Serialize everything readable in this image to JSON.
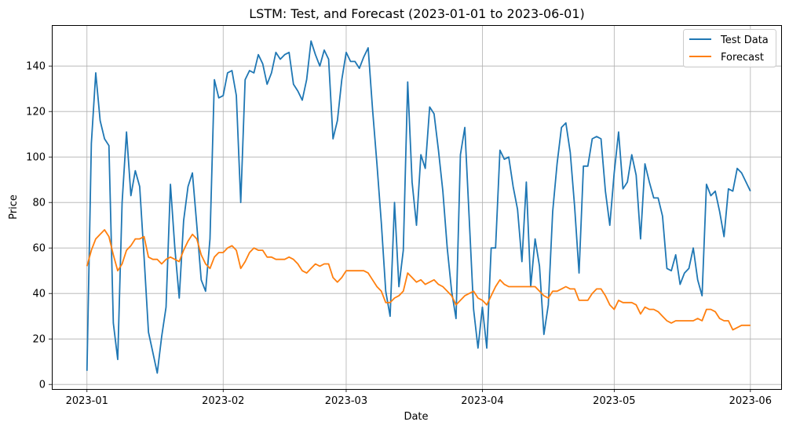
{
  "chart_data": {
    "type": "line",
    "title": "LSTM: Test, and Forecast (2023-01-01 to 2023-06-01)",
    "xlabel": "Date",
    "ylabel": "Price",
    "x_start": "2023-01-01",
    "x_end": "2023-06-01",
    "xlim": [
      "2022-12-24",
      "2023-06-08"
    ],
    "ylim": [
      -2,
      158
    ],
    "x_ticks": [
      "2023-01-01",
      "2023-02-01",
      "2023-03-01",
      "2023-04-01",
      "2023-05-01",
      "2023-06-01"
    ],
    "x_tick_labels": [
      "2023-01",
      "2023-02",
      "2023-03",
      "2023-04",
      "2023-05",
      "2023-06"
    ],
    "y_ticks": [
      0,
      20,
      40,
      60,
      80,
      100,
      120,
      140
    ],
    "grid": true,
    "legend_position": "top-right",
    "series": [
      {
        "name": "Test Data",
        "color": "#1f77b4",
        "values": [
          6,
          106,
          137,
          116,
          108,
          105,
          27,
          11,
          80,
          111,
          83,
          94,
          87,
          56,
          23,
          14,
          5,
          21,
          34,
          88,
          60,
          38,
          72,
          87,
          93,
          70,
          46,
          41,
          64,
          134,
          126,
          127,
          137,
          138,
          127,
          80,
          134,
          138,
          137,
          145,
          141,
          132,
          137,
          146,
          143,
          145,
          146,
          132,
          129,
          125,
          134,
          151,
          145,
          140,
          147,
          143,
          108,
          116,
          134,
          146,
          142,
          142,
          139,
          144,
          148,
          121,
          97,
          71,
          41,
          30,
          80,
          43,
          59,
          133,
          89,
          70,
          101,
          95,
          122,
          119,
          103,
          85,
          60,
          41,
          29,
          101,
          113,
          73,
          33,
          16,
          34,
          16,
          60,
          60,
          103,
          99,
          100,
          87,
          77,
          54,
          89,
          43,
          64,
          52,
          22,
          35,
          76,
          97,
          113,
          115,
          102,
          78,
          49,
          96,
          96,
          108,
          109,
          108,
          85,
          70,
          93,
          111,
          86,
          89,
          101,
          92,
          64,
          97,
          89,
          82,
          82,
          74,
          51,
          50,
          57,
          44,
          49,
          51,
          60,
          46,
          39,
          88,
          83,
          85,
          76,
          65,
          86,
          85,
          95,
          93,
          89,
          85
        ]
      },
      {
        "name": "Forecast",
        "color": "#ff7f0e",
        "values": [
          52,
          59,
          64,
          66,
          68,
          65,
          57,
          50,
          53,
          59,
          61,
          64,
          64,
          65,
          56,
          55,
          55,
          53,
          55,
          56,
          55,
          54,
          59,
          63,
          66,
          64,
          57,
          53,
          51,
          56,
          58,
          58,
          60,
          61,
          59,
          51,
          54,
          58,
          60,
          59,
          59,
          56,
          56,
          55,
          55,
          55,
          56,
          55,
          53,
          50,
          49,
          51,
          53,
          52,
          53,
          53,
          47,
          45,
          47,
          50,
          50,
          50,
          50,
          50,
          49,
          46,
          43,
          41,
          36,
          36,
          38,
          39,
          41,
          49,
          47,
          45,
          46,
          44,
          45,
          46,
          44,
          43,
          41,
          39,
          35,
          37,
          39,
          40,
          41,
          38,
          37,
          35,
          39,
          43,
          46,
          44,
          43,
          43,
          43,
          43,
          43,
          43,
          43,
          41,
          39,
          38,
          41,
          41,
          42,
          43,
          42,
          42,
          37,
          37,
          37,
          40,
          42,
          42,
          39,
          35,
          33,
          37,
          36,
          36,
          36,
          35,
          31,
          34,
          33,
          33,
          32,
          30,
          28,
          27,
          28,
          28,
          28,
          28,
          28,
          29,
          28,
          33,
          33,
          32,
          29,
          28,
          28,
          24,
          25,
          26,
          26,
          26
        ]
      }
    ]
  }
}
